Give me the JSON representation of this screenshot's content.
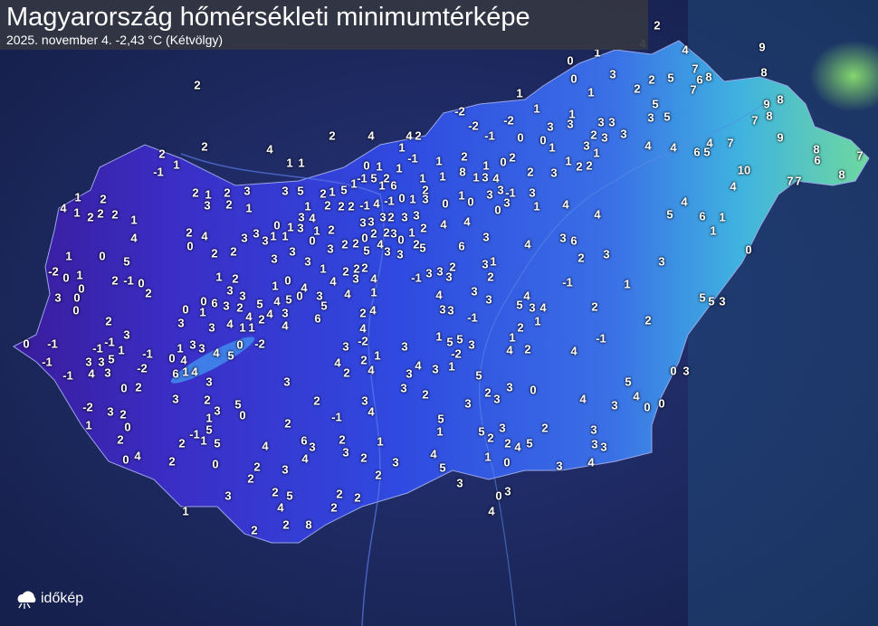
{
  "header": {
    "title": "Magyarország hőmérsékleti minimumtérképe",
    "subtitle": "2025. november 4.  -2,43 °C (Kétvölgy)"
  },
  "logo": {
    "text": "időkép",
    "icon": "cloud-sun-icon"
  },
  "colors": {
    "cold": "#3a1c9c",
    "mid": "#2f4ae0",
    "warm": "#3fb3e0",
    "warmest": "#7fe07a",
    "background": "#1d2a5c"
  },
  "stations": [
    "2",
    "4",
    "1",
    "0",
    "4",
    "9",
    "0",
    "3",
    "7",
    "5",
    "6",
    "8",
    "8",
    "2",
    "2",
    "1",
    "1",
    "2",
    "7",
    "5",
    "9",
    "8",
    "-2",
    "1",
    "1",
    "3",
    "3",
    "3",
    "3",
    "5",
    "7",
    "8",
    "-2",
    "-2",
    "3",
    "2",
    "3",
    "3",
    "4",
    "4",
    "2",
    "2",
    "-1",
    "0",
    "0",
    "3",
    "2",
    "4",
    "2",
    "1",
    "1",
    "1",
    "4",
    "4",
    "6",
    "5",
    "4",
    "7",
    "9",
    "8",
    "7",
    "1",
    "1",
    "1",
    "-1",
    "1",
    "0",
    "1",
    "1",
    "2",
    "1",
    "0",
    "2",
    "1",
    "2",
    "2",
    "3",
    "2",
    "-1",
    "8",
    "6",
    "10",
    "8",
    "7",
    "7",
    "4",
    "1",
    "3",
    "4",
    "1",
    "-1",
    "5",
    "2",
    "6",
    "1",
    "1",
    "5",
    "1",
    "3",
    "-1",
    "1",
    "2",
    "2",
    "1",
    "2",
    "3",
    "3",
    "5",
    "2",
    "1",
    "2",
    "1",
    "3",
    "3",
    "3",
    "2",
    "1",
    "1",
    "2",
    "2",
    "2",
    "-1",
    "4",
    "-1",
    "0",
    "1",
    "3",
    "0",
    "0",
    "3",
    "0",
    "1",
    "4",
    "4",
    "4",
    "1",
    "2",
    "2",
    "2",
    "1",
    "3",
    "4",
    "3",
    "3",
    "3",
    "2",
    "3",
    "3",
    "4",
    "4",
    "4",
    "5",
    "6",
    "1",
    "0",
    "1",
    "3",
    "1",
    "2",
    "2",
    "4",
    "3",
    "3",
    "3",
    "1",
    "1",
    "0",
    "2",
    "2",
    "0",
    "2",
    "4",
    "2",
    "3",
    "0",
    "1",
    "2",
    "2",
    "4",
    "3",
    "4",
    "3",
    "6",
    "1",
    "0",
    "2",
    "2",
    "3",
    "3",
    "3",
    "3",
    "5",
    "3",
    "3",
    "5",
    "6",
    "0",
    "1",
    "0",
    "5",
    "3",
    "3",
    "2",
    "3",
    "1",
    "-2",
    "0",
    "1",
    "1",
    "2",
    "2",
    "2",
    "-1",
    "3",
    "3",
    "3",
    "2",
    "2",
    "2",
    "-1",
    "0",
    "1",
    "2",
    "4",
    "3",
    "4",
    "-1",
    "1",
    "0",
    "0",
    "2",
    "3",
    "0",
    "3",
    "3",
    "1",
    "4",
    "3",
    "4",
    "1",
    "4",
    "3",
    "3",
    "4",
    "5",
    "5",
    "3",
    "0",
    "6",
    "3",
    "2",
    "5",
    "4",
    "5",
    "0",
    "0",
    "0",
    "1",
    "3",
    "3",
    "5",
    "3",
    "4",
    "2",
    "4",
    "4",
    "3",
    "5",
    "2",
    "4",
    "6",
    "-1",
    "1",
    "2",
    "3",
    "3",
    "4",
    "1",
    "1",
    "2",
    "4",
    "4",
    "2",
    "2",
    "1",
    "1",
    "5",
    "5",
    "-2",
    "-1",
    "0",
    "-1",
    "-1",
    "-1",
    "1",
    "3",
    "3",
    "3",
    "3",
    "4",
    "2",
    "4",
    "1",
    "3",
    "3",
    "4",
    "5",
    "0",
    "-2",
    "-1",
    "-1",
    "3",
    "3",
    "5",
    "0",
    "4",
    "4",
    "2",
    "1",
    "4",
    "3",
    "1",
    "-2",
    "-2",
    "-1",
    "4",
    "3",
    "6",
    "1",
    "4",
    "2",
    "4",
    "3",
    "5",
    "5",
    "0",
    "3",
    "0",
    "2",
    "3",
    "3",
    "2",
    "2",
    "3",
    "0",
    "3",
    "2",
    "5",
    "2",
    "3",
    "4",
    "3",
    "3",
    "3",
    "4",
    "3",
    "4",
    "0",
    "0",
    "-2",
    "3",
    "2",
    "0",
    "3",
    "1",
    "0",
    "-1",
    "1",
    "2",
    "2",
    "5",
    "5",
    "3",
    "5",
    "2",
    "2",
    "3",
    "-1",
    "1",
    "2",
    "1",
    "5",
    "4",
    "6",
    "3",
    "2",
    "3",
    "1",
    "2",
    "4",
    "5",
    "3",
    "3",
    "4",
    "2",
    "3",
    "4",
    "1",
    "0",
    "0",
    "4",
    "2",
    "0",
    "2",
    "3",
    "5",
    "3",
    "4",
    "2",
    "2",
    "3",
    "3",
    "2",
    "5",
    "4",
    "2",
    "2",
    "2",
    "0",
    "3",
    "1",
    "4",
    "2",
    "2",
    "8"
  ]
}
